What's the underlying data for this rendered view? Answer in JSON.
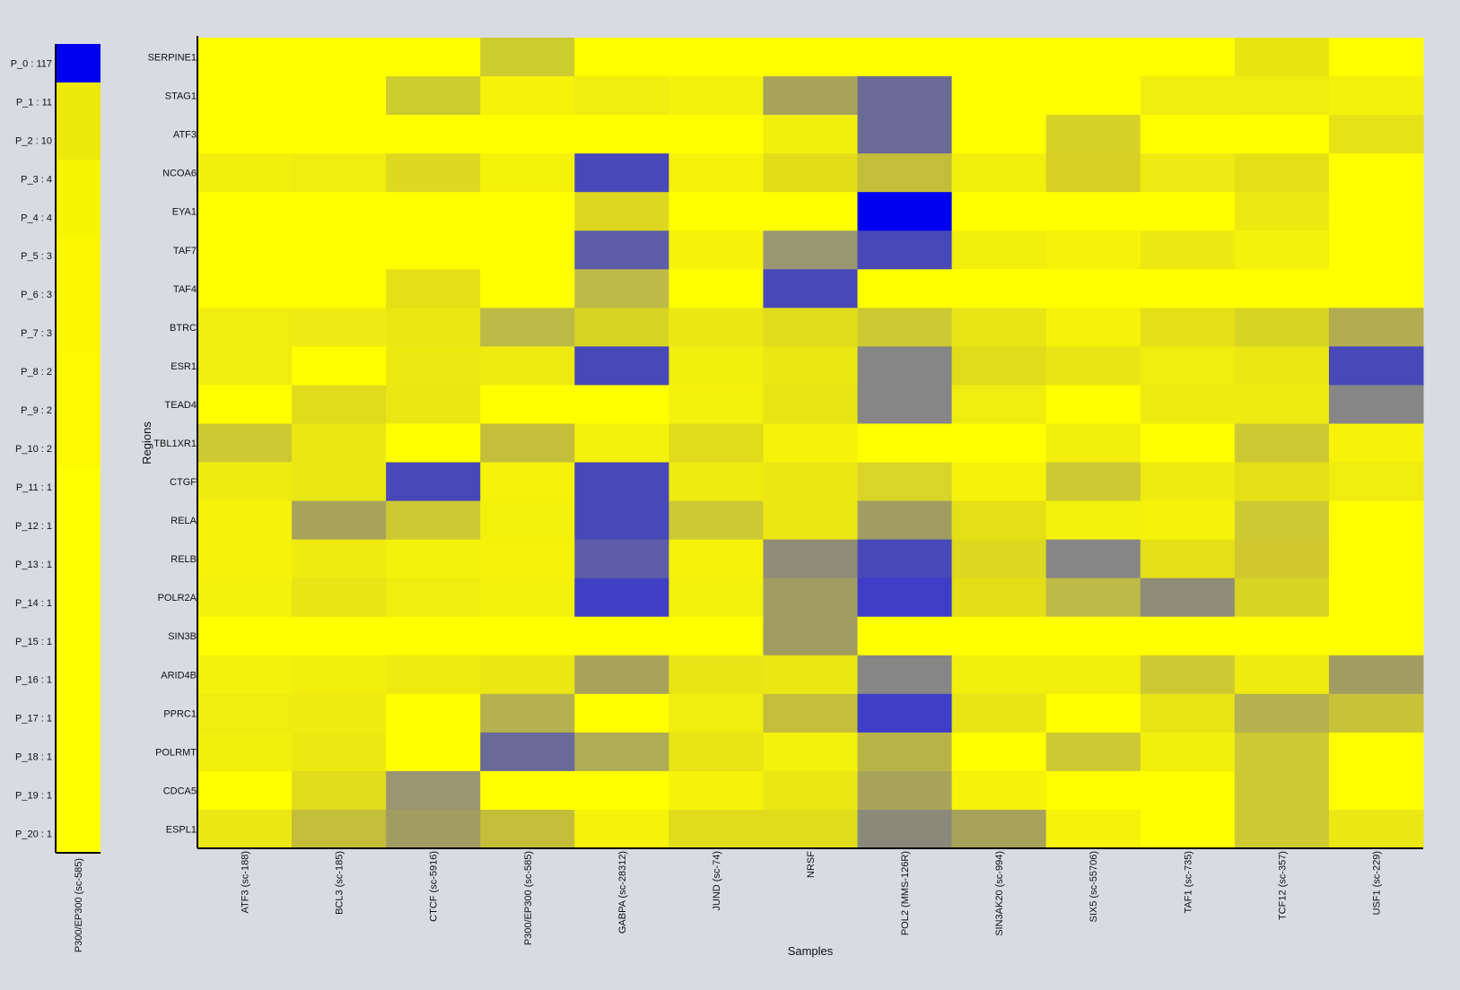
{
  "colors": {
    "background": "#d8dbe2",
    "low": "#ffff00",
    "high": "#0000ff",
    "axis": "#000000"
  },
  "side_panel": {
    "column_label": "P300/EP300 (sc-585)",
    "row_labels": [
      "P_0 : 117",
      "P_1 : 11",
      "P_2 : 10",
      "P_3 : 4",
      "P_4 : 4",
      "P_5 : 3",
      "P_6 : 3",
      "P_7 : 3",
      "P_8 : 2",
      "P_9 : 2",
      "P_10 : 2",
      "P_11 : 1",
      "P_12 : 1",
      "P_13 : 1",
      "P_14 : 1",
      "P_15 : 1",
      "P_16 : 1",
      "P_17 : 1",
      "P_18 : 1",
      "P_19 : 1",
      "P_20 : 1"
    ],
    "colors": [
      "#0000f0",
      "#ebe80a",
      "#ebe80a",
      "#f8f500",
      "#f8f500",
      "#fbf700",
      "#fbf700",
      "#fbf700",
      "#fdfa00",
      "#fdfa00",
      "#fdfa00",
      "#ffff00",
      "#ffff00",
      "#ffff00",
      "#ffff00",
      "#ffff00",
      "#ffff00",
      "#ffff00",
      "#ffff00",
      "#ffff00",
      "#ffff00"
    ]
  },
  "chart_data": {
    "type": "heatmap",
    "xlabel": "Samples",
    "ylabel": "Regions",
    "columns": [
      "ATF3 (sc-188)",
      "BCL3 (sc-185)",
      "CTCF (sc-5916)",
      "P300/EP300 (sc-585)",
      "GABPA (sc-28312)",
      "JUND (sc-74)",
      "NRSF",
      "POL2 (MMS-126R)",
      "SIN3AK20 (sc-994)",
      "SIX5 (sc-55706)",
      "TAF1 (sc-735)",
      "TCF12 (sc-357)",
      "USF1 (sc-229)"
    ],
    "rows": [
      "SERPINE1",
      "STAG1",
      "ATF3",
      "NCOA6",
      "EYA1",
      "TAF7",
      "TAF4",
      "BTRC",
      "ESR1",
      "TEAD4",
      "TBL1XR1",
      "CTGF",
      "RELA",
      "RELB",
      "POLR2A",
      "SIN3B",
      "ARID4B",
      "PPRC1",
      "POLRMT",
      "CDCA5",
      "ESPL1"
    ],
    "cells": [
      [
        "#ffff00",
        "#ffff00",
        "#ffff00",
        "#cccb2f",
        "#ffff00",
        "#ffff00",
        "#ffff00",
        "#ffff00",
        "#ffff00",
        "#ffff00",
        "#ffff00",
        "#e8e410",
        "#ffff00"
      ],
      [
        "#ffff00",
        "#ffff00",
        "#cccb2f",
        "#f6f20a",
        "#efec10",
        "#f4f10c",
        "#a8a35a",
        "#6a6a96",
        "#ffff00",
        "#ffff00",
        "#f0ed10",
        "#efec10",
        "#f4f10c"
      ],
      [
        "#ffff00",
        "#ffff00",
        "#ffff00",
        "#ffff00",
        "#ffff00",
        "#ffff00",
        "#f2ef0e",
        "#6a6a96",
        "#ffff00",
        "#d6d228",
        "#ffff00",
        "#ffff00",
        "#e5e215"
      ],
      [
        "#f2ee0e",
        "#f0ec10",
        "#ddd820",
        "#f5f20a",
        "#4848b8",
        "#f6f20a",
        "#e2dd18",
        "#c3bd3a",
        "#f2ee0e",
        "#d8d024",
        "#eeea12",
        "#e5e015",
        "#ffff00"
      ],
      [
        "#ffff00",
        "#ffff00",
        "#ffff00",
        "#ffff00",
        "#dcd820",
        "#ffff00",
        "#ffff00",
        "#0000f0",
        "#ffff00",
        "#ffff00",
        "#ffff00",
        "#ede910",
        "#ffff00"
      ],
      [
        "#ffff00",
        "#ffff00",
        "#ffff00",
        "#ffff00",
        "#5e5ea8",
        "#f6f20a",
        "#999672",
        "#4848b8",
        "#f2ee0e",
        "#f6f20a",
        "#ede910",
        "#f4f10c",
        "#ffff00"
      ],
      [
        "#ffff00",
        "#ffff00",
        "#e5e015",
        "#ffff00",
        "#beba48",
        "#ffff00",
        "#4848b8",
        "#ffff00",
        "#ffff00",
        "#ffff00",
        "#ffff00",
        "#ffff00",
        "#ffff00"
      ],
      [
        "#f0ec10",
        "#eeea12",
        "#ebe714",
        "#beba48",
        "#d8d424",
        "#ebe714",
        "#e0dc1c",
        "#cdc933",
        "#e8e415",
        "#f6f20a",
        "#e5e015",
        "#d8d424",
        "#b3ad52"
      ],
      [
        "#f0ec10",
        "#ffff00",
        "#ede910",
        "#efeb10",
        "#4848b8",
        "#f2ee0e",
        "#ebe714",
        "#868686",
        "#e0dc1c",
        "#e8e415",
        "#f0ec10",
        "#ebe714",
        "#4848b8"
      ],
      [
        "#ffff00",
        "#e0dc1c",
        "#ebe714",
        "#ffff00",
        "#ffff00",
        "#f4f10c",
        "#e8e415",
        "#868686",
        "#f0ec10",
        "#ffff00",
        "#efeb10",
        "#efeb10",
        "#868686"
      ],
      [
        "#cdc933",
        "#ebe714",
        "#ffff00",
        "#c3bd3a",
        "#f4f10c",
        "#e0dc1c",
        "#f6f20a",
        "#ffff00",
        "#ffff00",
        "#f2ee0e",
        "#ffff00",
        "#cdc933",
        "#f6f20a"
      ],
      [
        "#efeb10",
        "#ebe714",
        "#4848b8",
        "#f6f20a",
        "#4848b8",
        "#efeb10",
        "#ebe714",
        "#d8d428",
        "#f6f20a",
        "#cdc933",
        "#efeb10",
        "#e5e015",
        "#f0ec10"
      ],
      [
        "#f6f20a",
        "#a8a35a",
        "#cdc933",
        "#f4f10c",
        "#4848b8",
        "#cdc933",
        "#ebe714",
        "#a19d62",
        "#e5e015",
        "#f4f10c",
        "#f6f20a",
        "#cdc933",
        "#ffff00"
      ],
      [
        "#f6f20a",
        "#efeb10",
        "#f4f10c",
        "#f6f20a",
        "#5e5ea8",
        "#f6f20a",
        "#8f8c78",
        "#4848b8",
        "#ddd820",
        "#868686",
        "#e5e015",
        "#d0c82e",
        "#ffff00"
      ],
      [
        "#f4f10c",
        "#e8e415",
        "#f0ec10",
        "#f4f10c",
        "#4040c4",
        "#f4f10c",
        "#a19d62",
        "#3d3dc8",
        "#e3de18",
        "#beba48",
        "#8f8c78",
        "#d8d424",
        "#ffff00"
      ],
      [
        "#ffff00",
        "#ffff00",
        "#ffff00",
        "#ffff00",
        "#ffff00",
        "#ffff00",
        "#a19d62",
        "#ffff00",
        "#ffff00",
        "#ffff00",
        "#ffff00",
        "#ffff00",
        "#ffff00"
      ],
      [
        "#f4f10c",
        "#f2ee0e",
        "#efeb10",
        "#ebe714",
        "#a8a35a",
        "#e8e415",
        "#ebe714",
        "#868686",
        "#f2ee0e",
        "#f2ee0e",
        "#cdc933",
        "#efeb10",
        "#a19d62"
      ],
      [
        "#f0ec10",
        "#efeb10",
        "#ffff00",
        "#b5b050",
        "#ffff00",
        "#f0ec10",
        "#c3bd3a",
        "#3d3dc8",
        "#e8e415",
        "#ffff00",
        "#e8e415",
        "#b5b050",
        "#c8c238"
      ],
      [
        "#f2ee0e",
        "#ede910",
        "#ffff00",
        "#6a6a96",
        "#b0ab55",
        "#e8e415",
        "#f4f10c",
        "#b8b448",
        "#ffff00",
        "#cdc933",
        "#f2ee0e",
        "#cdc933",
        "#ffff00"
      ],
      [
        "#ffff00",
        "#e0dc1c",
        "#9a9672",
        "#ffff00",
        "#ffff00",
        "#f6f20a",
        "#ebe714",
        "#a8a35a",
        "#f6f20a",
        "#ffff00",
        "#ffff00",
        "#cdc933",
        "#ffff00"
      ],
      [
        "#ebe714",
        "#c3bd3a",
        "#a19d62",
        "#c3bd3a",
        "#f6f20a",
        "#e0dc1c",
        "#e0dc1c",
        "#8a8a7a",
        "#a8a35a",
        "#f6f20a",
        "#ffff00",
        "#cdc933",
        "#ebe714"
      ]
    ]
  }
}
